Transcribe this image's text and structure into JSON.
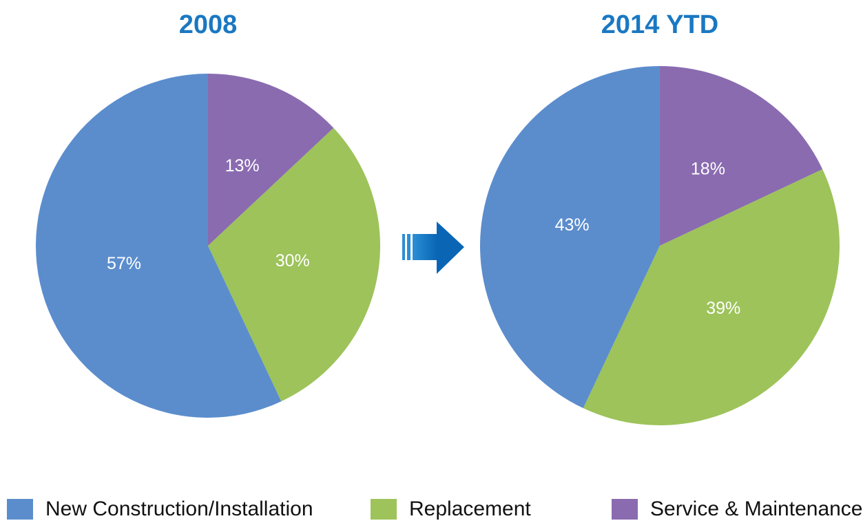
{
  "chart_data": [
    {
      "type": "pie",
      "title": "2008",
      "categories": [
        "New Construction/Installation",
        "Replacement",
        "Service & Maintenance"
      ],
      "values": [
        57,
        30,
        13
      ],
      "value_labels": [
        "57%",
        "30%",
        "13%"
      ],
      "colors": [
        "#5b8dcd",
        "#9dc35a",
        "#8a6bb0"
      ]
    },
    {
      "type": "pie",
      "title": "2014 YTD",
      "categories": [
        "New Construction/Installation",
        "Replacement",
        "Service & Maintenance"
      ],
      "values": [
        43,
        39,
        18
      ],
      "value_labels": [
        "43%",
        "39%",
        "18%"
      ],
      "colors": [
        "#5b8dcd",
        "#9dc35a",
        "#8a6bb0"
      ]
    }
  ]
}
